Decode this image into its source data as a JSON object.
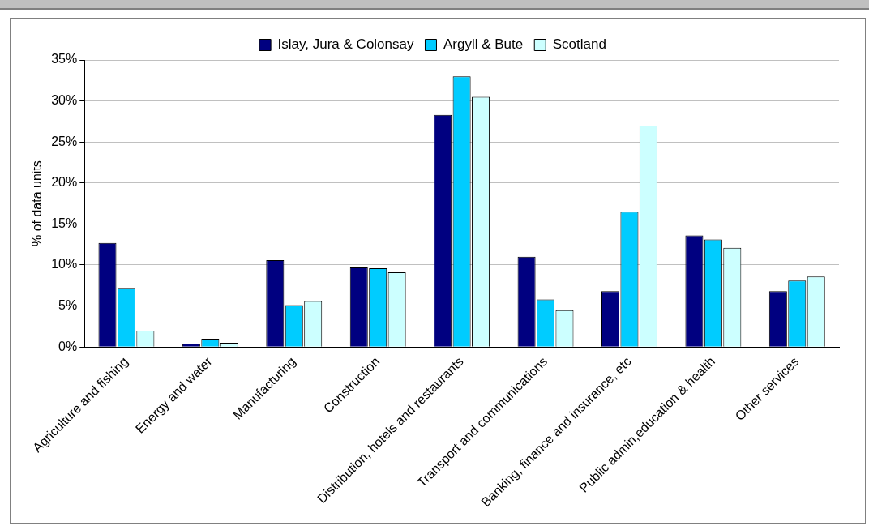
{
  "chart_data": {
    "type": "bar",
    "ylabel": "% of data units",
    "categories": [
      "Agriculture and fishing",
      "Energy and water",
      "Manufacturing",
      "Construction",
      "Distribution, hotels and restaurants",
      "Transport and communications",
      "Banking, finance and insurance, etc",
      "Public admin,education & health",
      "Other services"
    ],
    "series": [
      {
        "name": "Islay, Jura & Colonsay",
        "color": "#000080",
        "values": [
          12.7,
          0.4,
          10.6,
          9.7,
          28.3,
          11.0,
          6.8,
          13.6,
          6.8
        ]
      },
      {
        "name": "Argyll & Bute",
        "color": "#00ccff",
        "values": [
          7.2,
          1.0,
          5.1,
          9.6,
          33.0,
          5.8,
          16.5,
          13.1,
          8.1
        ]
      },
      {
        "name": "Scotland",
        "color": "#ccffff",
        "values": [
          2.0,
          0.5,
          5.6,
          9.1,
          30.5,
          4.5,
          27.0,
          12.1,
          8.6
        ]
      }
    ],
    "ylim": [
      0,
      35
    ],
    "yticks": [
      {
        "value": 0,
        "label": "0%"
      },
      {
        "value": 5,
        "label": "5%"
      },
      {
        "value": 10,
        "label": "10%"
      },
      {
        "value": 15,
        "label": "15%"
      },
      {
        "value": 20,
        "label": "20%"
      },
      {
        "value": 25,
        "label": "25%"
      },
      {
        "value": 30,
        "label": "30%"
      },
      {
        "value": 35,
        "label": "35%"
      }
    ],
    "grid": "y",
    "legend": "top"
  }
}
